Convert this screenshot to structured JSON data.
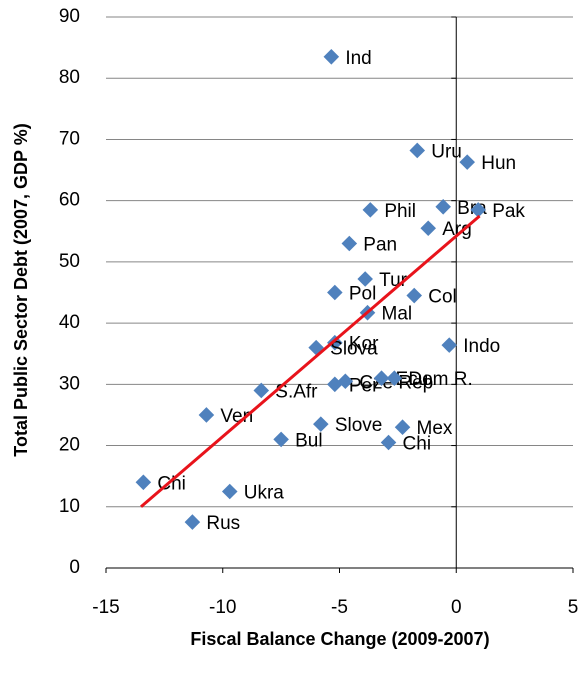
{
  "chart_data": {
    "type": "scatter",
    "x_label": "Fiscal Balance Change (2009-2007)",
    "y_label": "Total Public Sector Debt (2007, GDP %)",
    "color": "#4f81bd",
    "points": [
      {
        "label": "Ind",
        "x": -5.35,
        "y": 83.5
      },
      {
        "label": "Uru",
        "x": -1.67,
        "y": 68.2
      },
      {
        "label": "Hun",
        "x": 0.47,
        "y": 66.3
      },
      {
        "label": "Bra",
        "x": -0.56,
        "y": 59
      },
      {
        "label": "Pak",
        "x": 0.94,
        "y": 58.5
      },
      {
        "label": "Arg",
        "x": -1.2,
        "y": 55.5
      },
      {
        "label": "Phil",
        "x": -3.68,
        "y": 58.5
      },
      {
        "label": "Pan",
        "x": -4.58,
        "y": 53
      },
      {
        "label": "Tur",
        "x": -3.9,
        "y": 47.2
      },
      {
        "label": "Pol",
        "x": -5.2,
        "y": 45
      },
      {
        "label": "Col",
        "x": -1.8,
        "y": 44.5
      },
      {
        "label": "Mal",
        "x": -3.8,
        "y": 41.7
      },
      {
        "label": "Indo",
        "x": -0.3,
        "y": 36.4
      },
      {
        "label": "Kor",
        "x": -5.2,
        "y": 36.8
      },
      {
        "label": "Slova",
        "x": -6.0,
        "y": 36
      },
      {
        "label": "S.Afr",
        "x": -8.35,
        "y": 29
      },
      {
        "label": "Per",
        "x": -5.2,
        "y": 30
      },
      {
        "label": "Cze Rep",
        "x": -4.75,
        "y": 30.5
      },
      {
        "label": "Ecu",
        "x": -3.2,
        "y": 31
      },
      {
        "label": "Dom R.",
        "x": -2.65,
        "y": 31
      },
      {
        "label": "Ven",
        "x": -10.7,
        "y": 25
      },
      {
        "label": "Slove",
        "x": -5.8,
        "y": 23.5
      },
      {
        "label": "Mex",
        "x": -2.3,
        "y": 23
      },
      {
        "label": "Bul",
        "x": -7.5,
        "y": 21
      },
      {
        "label": "Chi",
        "x": -2.9,
        "y": 20.5
      },
      {
        "label": "Chi",
        "x": -13.4,
        "y": 14
      },
      {
        "label": "Ukra",
        "x": -9.7,
        "y": 12.5
      },
      {
        "label": "Rus",
        "x": -11.3,
        "y": 7.5
      }
    ],
    "trendline": {
      "x": [
        -13.5,
        1
      ],
      "y": [
        10,
        57.5
      ],
      "color": "#e8131b"
    },
    "xlim": [
      -15,
      5
    ],
    "xticks": [
      -15,
      -10,
      -5,
      0,
      5
    ],
    "ylim": [
      0,
      90
    ],
    "yticks": [
      0,
      10,
      20,
      30,
      40,
      50,
      60,
      70,
      80,
      90
    ],
    "grid": true
  }
}
